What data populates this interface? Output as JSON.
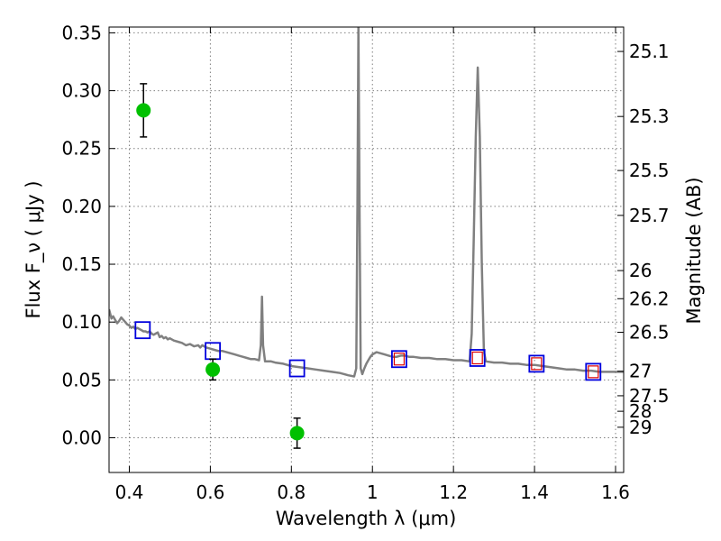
{
  "chart_data": {
    "type": "scatter",
    "xlabel": "Wavelength  λ (μm)",
    "ylabel": "Flux  F_ν  ( μJy )",
    "ylabel_right": "Magnitude (AB)",
    "xlim": [
      0.35,
      1.62
    ],
    "ylim": [
      -0.03,
      0.355
    ],
    "grid": true,
    "x_ticks": [
      {
        "value": 0.4,
        "label": "0.4"
      },
      {
        "value": 0.6,
        "label": "0.6"
      },
      {
        "value": 0.8,
        "label": "0.8"
      },
      {
        "value": 1.0,
        "label": "1"
      },
      {
        "value": 1.2,
        "label": "1.2"
      },
      {
        "value": 1.4,
        "label": "1.4"
      },
      {
        "value": 1.6,
        "label": "1.6"
      }
    ],
    "y_ticks": [
      {
        "value": 0.0,
        "label": "0.00"
      },
      {
        "value": 0.05,
        "label": "0.05"
      },
      {
        "value": 0.1,
        "label": "0.10"
      },
      {
        "value": 0.15,
        "label": "0.15"
      },
      {
        "value": 0.2,
        "label": "0.20"
      },
      {
        "value": 0.25,
        "label": "0.25"
      },
      {
        "value": 0.3,
        "label": "0.30"
      },
      {
        "value": 0.35,
        "label": "0.35"
      }
    ],
    "mag_ticks": [
      {
        "flux": 0.3339,
        "label": "25.1"
      },
      {
        "flux": 0.2777,
        "label": "25.3"
      },
      {
        "flux": 0.231,
        "label": "25.5"
      },
      {
        "flux": 0.1922,
        "label": "25.7"
      },
      {
        "flux": 0.1445,
        "label": "26"
      },
      {
        "flux": 0.1202,
        "label": "26.2"
      },
      {
        "flux": 0.0912,
        "label": "26.5"
      },
      {
        "flux": 0.0575,
        "label": "27"
      },
      {
        "flux": 0.0363,
        "label": "27.5"
      },
      {
        "flux": 0.0229,
        "label": "28"
      },
      {
        "flux": 0.0091,
        "label": "29"
      }
    ],
    "colors": {
      "sed": "#808080",
      "photometry": "#00c000",
      "model_box": "#0000dd",
      "model_box_inner": "#dd0000",
      "errorbar": "#000000",
      "grid": "#808080"
    },
    "series": [
      {
        "kind": "line",
        "points": [
          [
            0.35,
            0.111
          ],
          [
            0.356,
            0.103
          ],
          [
            0.36,
            0.105
          ],
          [
            0.365,
            0.102
          ],
          [
            0.37,
            0.099
          ],
          [
            0.375,
            0.101
          ],
          [
            0.38,
            0.104
          ],
          [
            0.385,
            0.102
          ],
          [
            0.39,
            0.1
          ],
          [
            0.395,
            0.098
          ],
          [
            0.4,
            0.097
          ],
          [
            0.405,
            0.095
          ],
          [
            0.41,
            0.096
          ],
          [
            0.415,
            0.094
          ],
          [
            0.42,
            0.095
          ],
          [
            0.425,
            0.094
          ],
          [
            0.43,
            0.093
          ],
          [
            0.435,
            0.092
          ],
          [
            0.44,
            0.092
          ],
          [
            0.445,
            0.091
          ],
          [
            0.45,
            0.092
          ],
          [
            0.455,
            0.09
          ],
          [
            0.46,
            0.089
          ],
          [
            0.465,
            0.09
          ],
          [
            0.47,
            0.091
          ],
          [
            0.475,
            0.087
          ],
          [
            0.48,
            0.088
          ],
          [
            0.485,
            0.086
          ],
          [
            0.49,
            0.087
          ],
          [
            0.495,
            0.085
          ],
          [
            0.5,
            0.086
          ],
          [
            0.51,
            0.084
          ],
          [
            0.52,
            0.083
          ],
          [
            0.53,
            0.082
          ],
          [
            0.54,
            0.08
          ],
          [
            0.55,
            0.081
          ],
          [
            0.56,
            0.079
          ],
          [
            0.57,
            0.08
          ],
          [
            0.575,
            0.078
          ],
          [
            0.58,
            0.08
          ],
          [
            0.59,
            0.078
          ],
          [
            0.6,
            0.077
          ],
          [
            0.61,
            0.076
          ],
          [
            0.62,
            0.075
          ],
          [
            0.63,
            0.075
          ],
          [
            0.64,
            0.074
          ],
          [
            0.65,
            0.073
          ],
          [
            0.66,
            0.072
          ],
          [
            0.67,
            0.071
          ],
          [
            0.68,
            0.07
          ],
          [
            0.69,
            0.069
          ],
          [
            0.7,
            0.068
          ],
          [
            0.71,
            0.068
          ],
          [
            0.72,
            0.067
          ],
          [
            0.7245,
            0.08
          ],
          [
            0.7275,
            0.122
          ],
          [
            0.73,
            0.08
          ],
          [
            0.735,
            0.066
          ],
          [
            0.75,
            0.066
          ],
          [
            0.76,
            0.065
          ],
          [
            0.78,
            0.064
          ],
          [
            0.8,
            0.062
          ],
          [
            0.82,
            0.061
          ],
          [
            0.84,
            0.06
          ],
          [
            0.86,
            0.059
          ],
          [
            0.88,
            0.058
          ],
          [
            0.9,
            0.057
          ],
          [
            0.92,
            0.056
          ],
          [
            0.94,
            0.054
          ],
          [
            0.955,
            0.053
          ],
          [
            0.96,
            0.06
          ],
          [
            0.963,
            0.2
          ],
          [
            0.9655,
            0.355
          ],
          [
            0.968,
            0.2
          ],
          [
            0.971,
            0.06
          ],
          [
            0.975,
            0.055
          ],
          [
            0.98,
            0.06
          ],
          [
            0.985,
            0.064
          ],
          [
            0.99,
            0.067
          ],
          [
            0.995,
            0.07
          ],
          [
            1.0,
            0.072
          ],
          [
            1.01,
            0.074
          ],
          [
            1.02,
            0.073
          ],
          [
            1.03,
            0.072
          ],
          [
            1.04,
            0.071
          ],
          [
            1.05,
            0.07
          ],
          [
            1.06,
            0.07
          ],
          [
            1.07,
            0.071
          ],
          [
            1.08,
            0.071
          ],
          [
            1.09,
            0.07
          ],
          [
            1.1,
            0.07
          ],
          [
            1.12,
            0.069
          ],
          [
            1.14,
            0.069
          ],
          [
            1.16,
            0.068
          ],
          [
            1.18,
            0.068
          ],
          [
            1.2,
            0.067
          ],
          [
            1.22,
            0.067
          ],
          [
            1.24,
            0.066
          ],
          [
            1.245,
            0.09
          ],
          [
            1.25,
            0.17
          ],
          [
            1.255,
            0.26
          ],
          [
            1.26,
            0.32
          ],
          [
            1.265,
            0.26
          ],
          [
            1.27,
            0.15
          ],
          [
            1.275,
            0.075
          ],
          [
            1.28,
            0.066
          ],
          [
            1.3,
            0.065
          ],
          [
            1.32,
            0.065
          ],
          [
            1.34,
            0.064
          ],
          [
            1.36,
            0.064
          ],
          [
            1.38,
            0.063
          ],
          [
            1.4,
            0.063
          ],
          [
            1.42,
            0.062
          ],
          [
            1.44,
            0.061
          ],
          [
            1.46,
            0.06
          ],
          [
            1.48,
            0.059
          ],
          [
            1.5,
            0.059
          ],
          [
            1.52,
            0.058
          ],
          [
            1.54,
            0.058
          ],
          [
            1.56,
            0.057
          ],
          [
            1.58,
            0.057
          ],
          [
            1.6,
            0.057
          ],
          [
            1.62,
            0.057
          ]
        ]
      },
      {
        "kind": "model_photometry",
        "points": [
          {
            "x": 0.433,
            "y": 0.093,
            "inner": false
          },
          {
            "x": 0.606,
            "y": 0.075,
            "inner": false
          },
          {
            "x": 0.814,
            "y": 0.06,
            "inner": false
          },
          {
            "x": 1.066,
            "y": 0.068,
            "inner": true
          },
          {
            "x": 1.259,
            "y": 0.069,
            "inner": true
          },
          {
            "x": 1.405,
            "y": 0.064,
            "inner": true
          },
          {
            "x": 1.545,
            "y": 0.057,
            "inner": true
          }
        ]
      },
      {
        "kind": "observed_photometry",
        "points": [
          {
            "x": 0.435,
            "y": 0.283,
            "err": 0.023
          },
          {
            "x": 0.606,
            "y": 0.059,
            "err": 0.009
          },
          {
            "x": 0.814,
            "y": 0.004,
            "err": 0.013
          }
        ]
      }
    ]
  }
}
